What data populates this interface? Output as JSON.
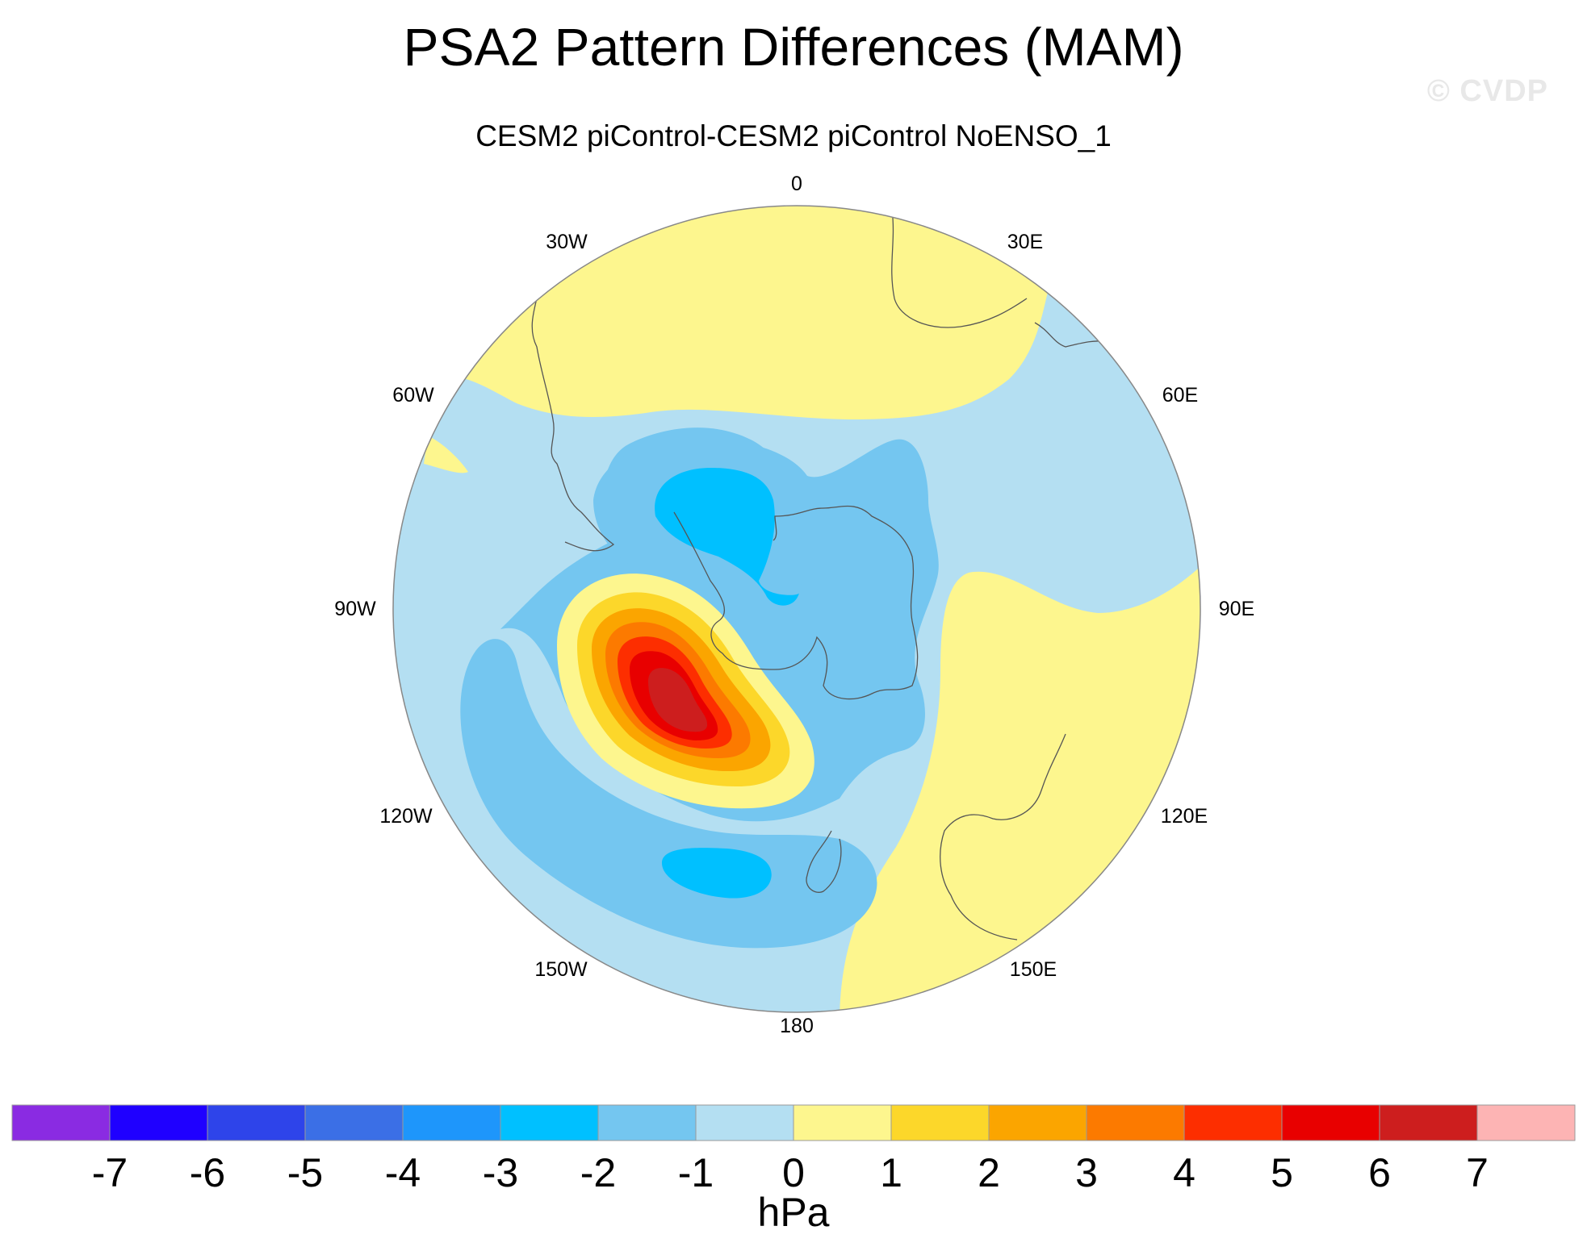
{
  "title": "PSA2 Pattern Differences (MAM)",
  "subtitle": "CESM2 piControl-CESM2 piControl NoENSO_1",
  "watermark": "© CVDP",
  "projection": "south-polar-stereographic",
  "longitude_labels": {
    "lon_0": "0",
    "lon_30e": "30E",
    "lon_60e": "60E",
    "lon_90e": "90E",
    "lon_120e": "120E",
    "lon_150e": "150E",
    "lon_180": "180",
    "lon_150w": "150W",
    "lon_120w": "120W",
    "lon_90w": "90W",
    "lon_60w": "60W",
    "lon_30w": "30W"
  },
  "colorbar": {
    "units": "hPa",
    "labels": [
      "-7",
      "-6",
      "-5",
      "-4",
      "-3",
      "-2",
      "-1",
      "0",
      "1",
      "2",
      "3",
      "4",
      "5",
      "6",
      "7"
    ],
    "colors": [
      "#8a2be2",
      "#1f00ff",
      "#2e44ea",
      "#3b6fe6",
      "#1e96fb",
      "#00c0ff",
      "#74c6f0",
      "#b4dff2",
      "#fdf68e",
      "#fcd72a",
      "#fba500",
      "#fc7a00",
      "#fd2e00",
      "#e80000",
      "#cd1e1e",
      "#fdb4b4"
    ]
  },
  "field_levels": {
    "light_blue": "#b4dff2",
    "blue": "#74c6f0",
    "cyan": "#00c0ff",
    "yellow": "#fdf68e",
    "gold": "#fcd72a",
    "orange": "#fba500",
    "dark_orange": "#fc7a00",
    "red_orange": "#fd2e00",
    "red": "#e80000",
    "dark_red": "#cd1e1e"
  }
}
